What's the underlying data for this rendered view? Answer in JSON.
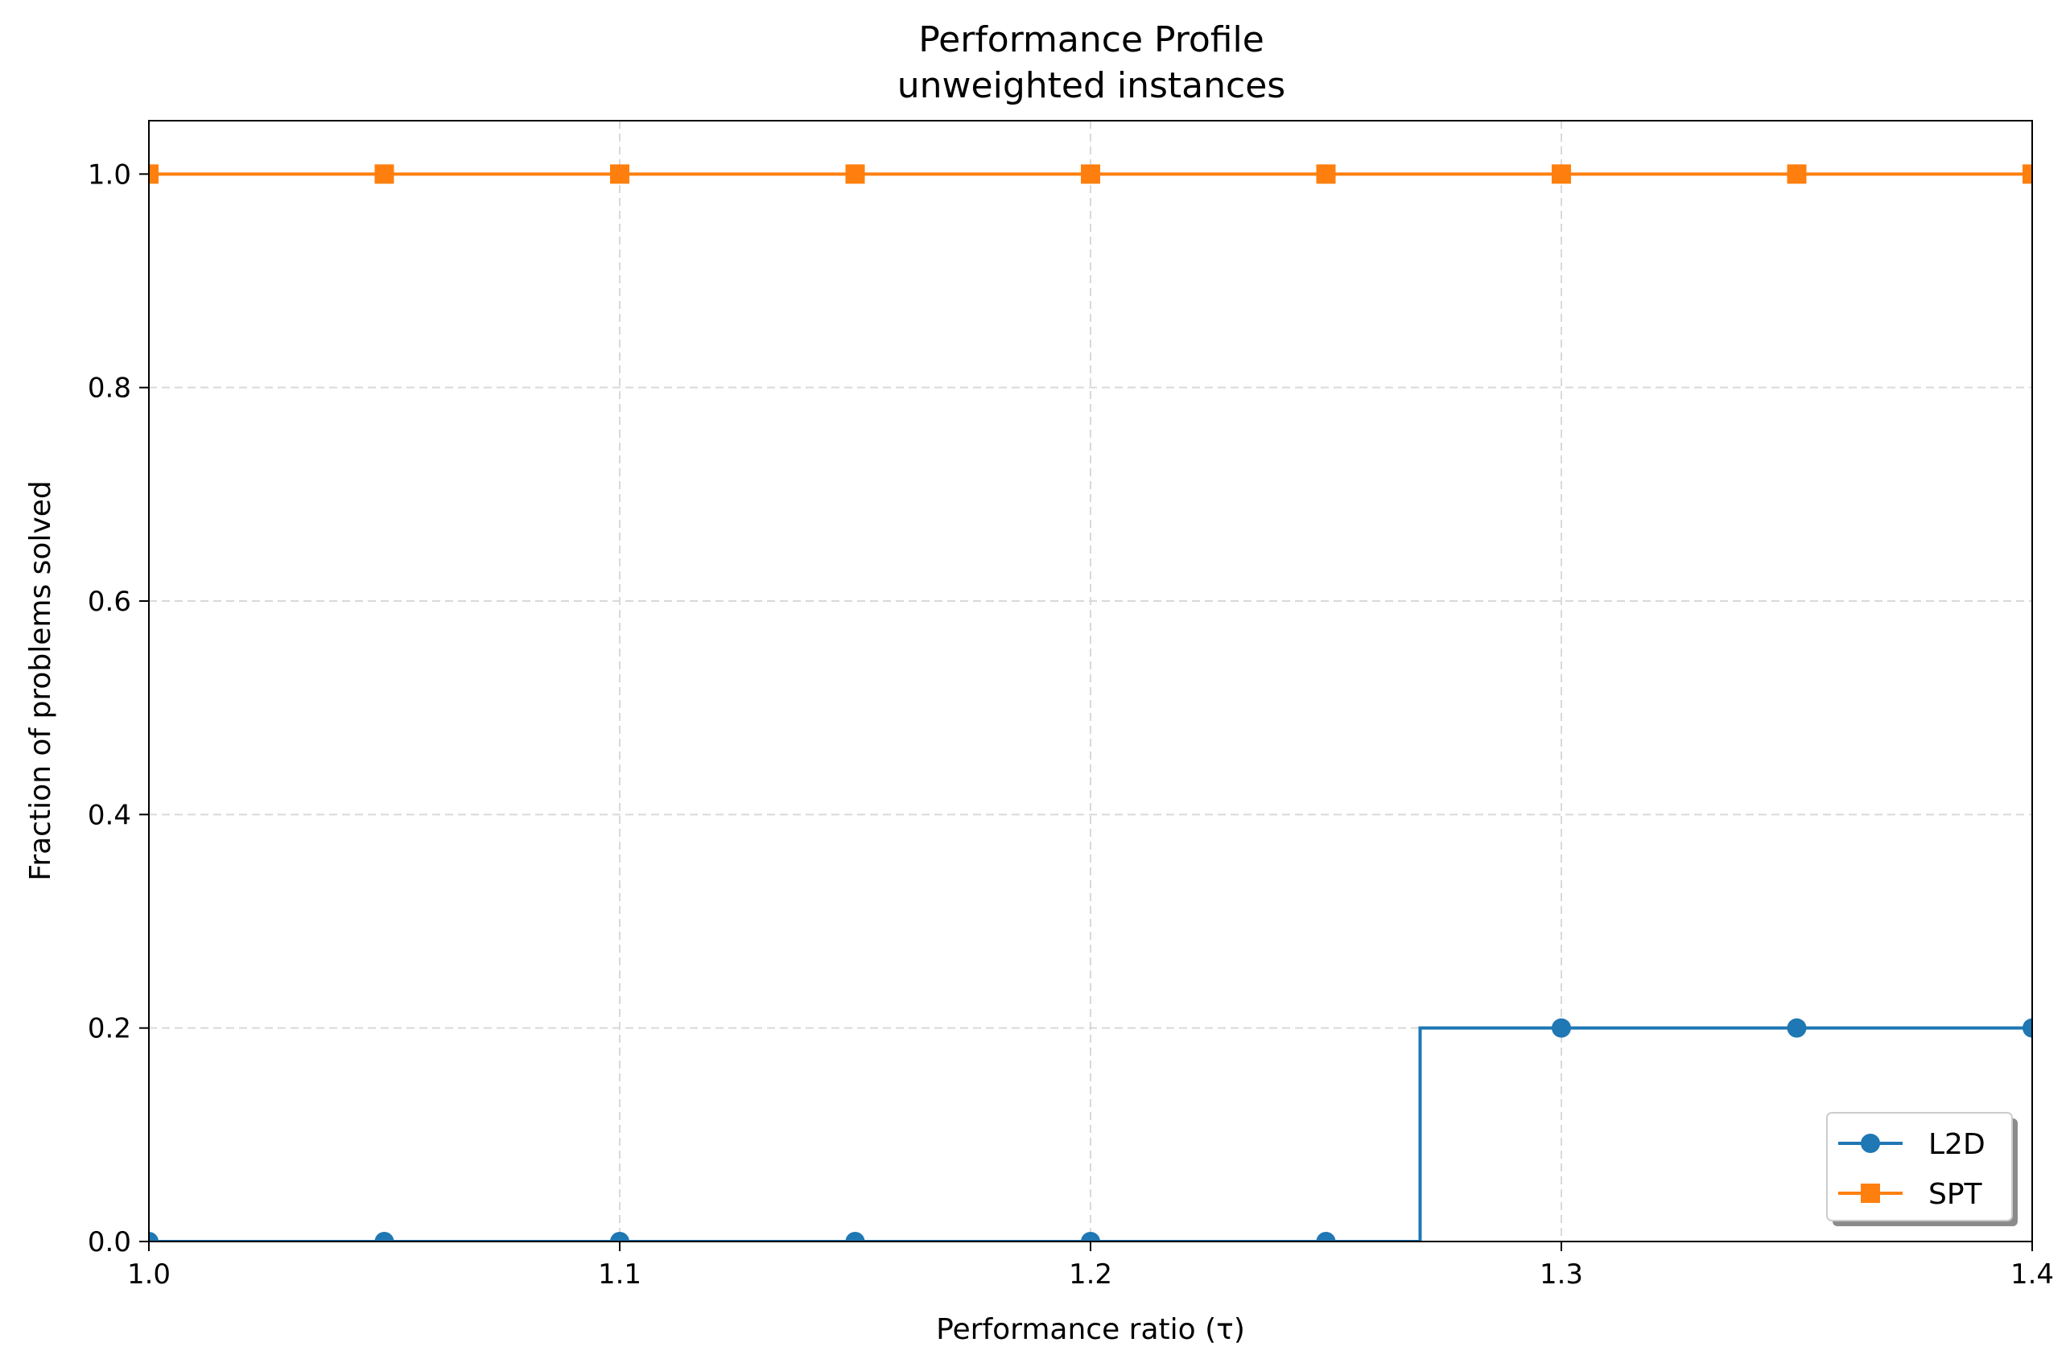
{
  "chart_data": {
    "type": "line",
    "title": "Performance Profile",
    "subtitle": "unweighted instances",
    "xlabel": "Performance ratio (τ)",
    "ylabel": "Fraction of problems solved",
    "xlim": [
      1.0,
      1.4
    ],
    "ylim": [
      0.0,
      1.05
    ],
    "xticks": [
      1.0,
      1.1,
      1.2,
      1.3,
      1.4
    ],
    "xtick_labels": [
      "1.0",
      "1.1",
      "1.2",
      "1.3",
      "1.4"
    ],
    "yticks": [
      0.0,
      0.2,
      0.4,
      0.6,
      0.8,
      1.0
    ],
    "ytick_labels": [
      "0.0",
      "0.2",
      "0.4",
      "0.6",
      "0.8",
      "1.0"
    ],
    "grid": true,
    "legend_position": "lower-right",
    "series": [
      {
        "name": "L2D",
        "color": "#1f77b4",
        "marker": "circle",
        "step": true,
        "step_points": [
          [
            1.0,
            0.0
          ],
          [
            1.27,
            0.0
          ],
          [
            1.27,
            0.2
          ],
          [
            1.4,
            0.2
          ]
        ],
        "marker_x": [
          1.0,
          1.05,
          1.1,
          1.15,
          1.2,
          1.25,
          1.3,
          1.35,
          1.4
        ],
        "marker_y": [
          0.0,
          0.0,
          0.0,
          0.0,
          0.0,
          0.0,
          0.2,
          0.2,
          0.2
        ]
      },
      {
        "name": "SPT",
        "color": "#ff7f0e",
        "marker": "square",
        "step": true,
        "step_points": [
          [
            1.0,
            1.0
          ],
          [
            1.4,
            1.0
          ]
        ],
        "marker_x": [
          1.0,
          1.05,
          1.1,
          1.15,
          1.2,
          1.25,
          1.3,
          1.35,
          1.4
        ],
        "marker_y": [
          1.0,
          1.0,
          1.0,
          1.0,
          1.0,
          1.0,
          1.0,
          1.0,
          1.0
        ]
      }
    ]
  }
}
